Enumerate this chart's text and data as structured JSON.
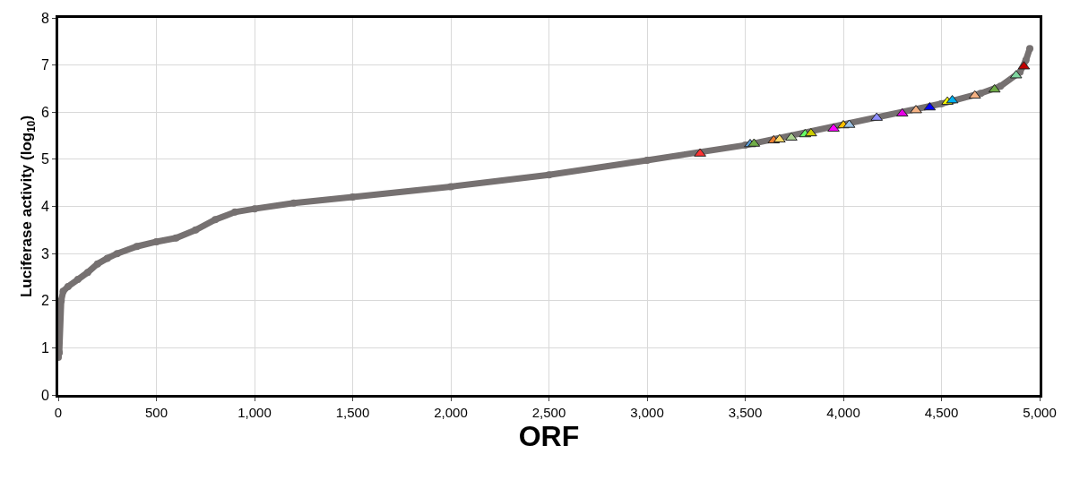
{
  "chart_data": {
    "type": "line",
    "xlabel": "ORF",
    "ylabel": "Luciferase activity (log$_{10}$)",
    "xlim": [
      0,
      5000
    ],
    "ylim": [
      0,
      8
    ],
    "xticks": [
      {
        "value": 0,
        "label": "0"
      },
      {
        "value": 500,
        "label": "500"
      },
      {
        "value": 1000,
        "label": "1,000"
      },
      {
        "value": 1500,
        "label": "1,500"
      },
      {
        "value": 2000,
        "label": "2,000"
      },
      {
        "value": 2500,
        "label": "2,500"
      },
      {
        "value": 3000,
        "label": "3,000"
      },
      {
        "value": 3500,
        "label": "3,500"
      },
      {
        "value": 4000,
        "label": "4,000"
      },
      {
        "value": 4500,
        "label": "4,500"
      },
      {
        "value": 5000,
        "label": "5,000"
      }
    ],
    "yticks": [
      0,
      1,
      2,
      3,
      4,
      5,
      6,
      7,
      8
    ],
    "grid": true,
    "series": [
      {
        "color": "#767171",
        "marker": "circle",
        "x": [
          0,
          5,
          15,
          25,
          50,
          100,
          150,
          200,
          250,
          300,
          400,
          500,
          600,
          700,
          800,
          900,
          1000,
          1200,
          1500,
          2000,
          2500,
          3000,
          3500,
          4500,
          4700,
          4800,
          4900,
          4930,
          4950
        ],
        "values": [
          0.8,
          0.9,
          2.0,
          2.2,
          2.3,
          2.45,
          2.6,
          2.78,
          2.9,
          3.0,
          3.15,
          3.25,
          3.33,
          3.5,
          3.72,
          3.88,
          3.95,
          4.07,
          4.2,
          4.42,
          4.67,
          4.98,
          5.3,
          6.18,
          6.4,
          6.55,
          6.85,
          7.1,
          7.35
        ]
      },
      {
        "type": "scatter",
        "marker": "triangle",
        "x": [
          3270,
          3525,
          3545,
          3645,
          3675,
          3735,
          3805,
          3835,
          3950,
          4000,
          4030,
          4170,
          4300,
          4370,
          4440,
          4530,
          4555,
          4670,
          4770,
          4880,
          4920
        ],
        "values": [
          5.12,
          5.32,
          5.33,
          5.4,
          5.42,
          5.46,
          5.53,
          5.55,
          5.65,
          5.72,
          5.73,
          5.88,
          5.97,
          6.04,
          6.1,
          6.22,
          6.25,
          6.35,
          6.48,
          6.78,
          6.97
        ],
        "colors": [
          "#ff3333",
          "#5b9bd5",
          "#70ad47",
          "#ed7d31",
          "#ffd966",
          "#a9d18e",
          "#66ff66",
          "#cccc00",
          "#ff00ff",
          "#ffc000",
          "#9dc3e6",
          "#8f8fff",
          "#e600e6",
          "#f4b183",
          "#0000ff",
          "#ffff00",
          "#00b0f0",
          "#f4b183",
          "#70ad47",
          "#7fd6a0",
          "#c00000"
        ]
      }
    ]
  }
}
